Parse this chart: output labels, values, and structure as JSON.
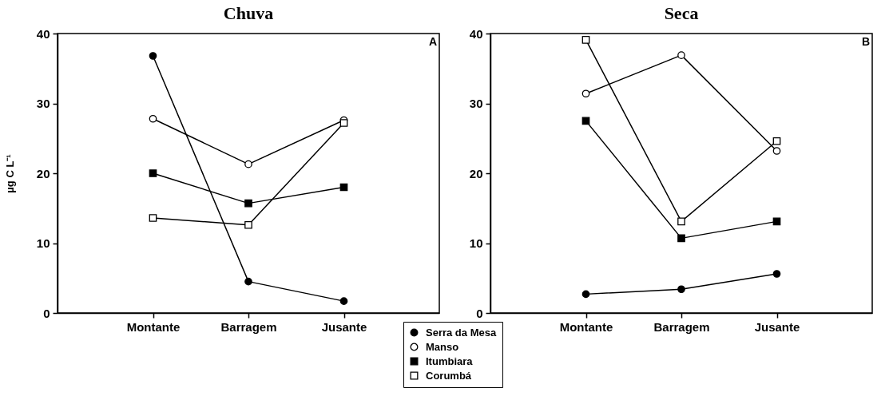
{
  "chart_data": [
    {
      "type": "line",
      "title": "Chuva",
      "ylabel": "µg C L⁻¹",
      "categories": [
        "Montante",
        "Barragem",
        "Jusante"
      ],
      "ylim": [
        0,
        40
      ],
      "yticks": [
        0,
        10,
        20,
        30,
        40
      ],
      "legend": "bottom right",
      "annotations": [
        "A"
      ],
      "series": [
        {
          "name": "Serra da Mesa",
          "color": "#000000",
          "marker": "circle",
          "values": [
            36.8,
            4.5,
            1.7
          ]
        },
        {
          "name": "Manso",
          "color": "#000000",
          "colors": [
            "#ffffff",
            "#ffffff",
            "#ffffff"
          ],
          "marker": "circle",
          "values": [
            27.8,
            21.3,
            27.6
          ]
        },
        {
          "name": "Itumbiara",
          "color": "#000000",
          "marker": "square",
          "values": [
            20.0,
            15.7,
            18.0
          ]
        },
        {
          "name": "Corumbá",
          "color": "#000000",
          "colors": [
            "#ffffff",
            "#ffffff",
            "#ffffff"
          ],
          "marker": "square",
          "values": [
            13.6,
            12.6,
            27.2
          ]
        }
      ]
    },
    {
      "type": "line",
      "title": "Seca",
      "categories": [
        "Montante",
        "Barragem",
        "Jusante"
      ],
      "ylim": [
        0,
        40
      ],
      "yticks": [
        0,
        10,
        20,
        30,
        40
      ],
      "annotations": [
        "B"
      ],
      "series": [
        {
          "name": "Serra da Mesa",
          "color": "#000000",
          "marker": "circle",
          "values": [
            2.7,
            3.4,
            5.6
          ]
        },
        {
          "name": "Manso",
          "color": "#000000",
          "colors": [
            "#ffffff",
            "#ffffff",
            "#ffffff"
          ],
          "marker": "circle",
          "values": [
            31.4,
            36.9,
            23.2
          ]
        },
        {
          "name": "Itumbiara",
          "color": "#000000",
          "marker": "square",
          "values": [
            27.5,
            10.7,
            13.1
          ]
        },
        {
          "name": "Corumbá",
          "color": "#000000",
          "colors": [
            "#ffffff",
            "#ffffff",
            "#ffffff"
          ],
          "marker": "square",
          "values": [
            39.1,
            13.1,
            24.6
          ]
        }
      ]
    }
  ]
}
